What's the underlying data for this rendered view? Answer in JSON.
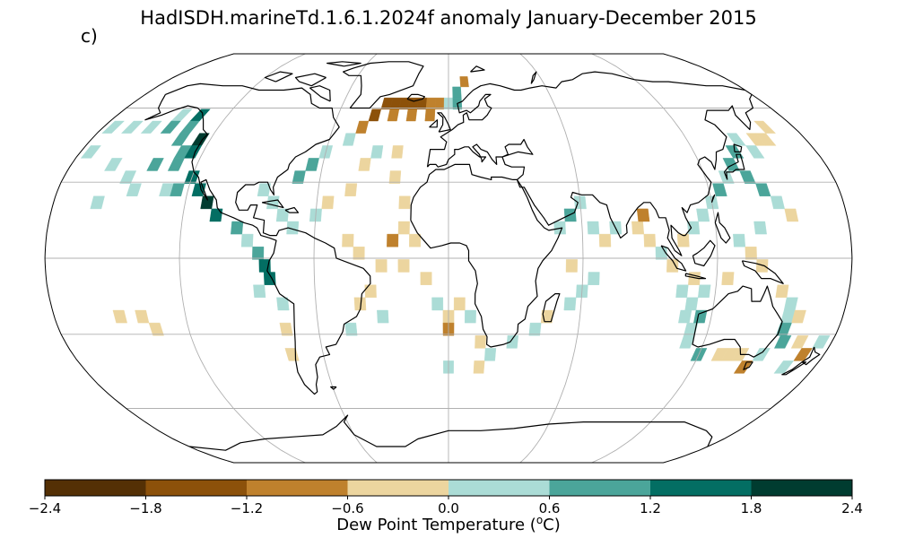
{
  "title": "HadISDH.marineTd.1.6.1.2024f anomaly January-December 2015",
  "panel_label": "c)",
  "projection": "Robinson",
  "colorbar": {
    "label_prefix": "Dew Point Temperature (",
    "label_unit_base": "o",
    "label_suffix": "C)",
    "ticks": [
      "−2.4",
      "−1.8",
      "−1.2",
      "−0.6",
      "0.0",
      "0.6",
      "1.2",
      "1.8",
      "2.4"
    ],
    "boundaries": [
      -2.4,
      -1.8,
      -1.2,
      -0.6,
      0.0,
      0.6,
      1.2,
      1.8,
      2.4
    ],
    "colors": [
      "#543005",
      "#8c510a",
      "#bf812d",
      "#ecd59f",
      "#abdcd6",
      "#4ba59a",
      "#036e63",
      "#003c30"
    ]
  },
  "cells": [
    {
      "lon": -175,
      "lat": 52,
      "v": 0.3
    },
    {
      "lon": -165,
      "lat": 52,
      "v": 0.3
    },
    {
      "lon": -155,
      "lat": 52,
      "v": 0.4
    },
    {
      "lon": -145,
      "lat": 57,
      "v": 0.5
    },
    {
      "lon": -145,
      "lat": 52,
      "v": 0.9
    },
    {
      "lon": -135,
      "lat": 57,
      "v": 1.5
    },
    {
      "lon": -135,
      "lat": 52,
      "v": 0.9
    },
    {
      "lon": -135,
      "lat": 47,
      "v": 1.0
    },
    {
      "lon": -125,
      "lat": 47,
      "v": 1.9
    },
    {
      "lon": -130,
      "lat": 42,
      "v": 1.0
    },
    {
      "lon": -125,
      "lat": 42,
      "v": 1.5
    },
    {
      "lon": -140,
      "lat": 37,
      "v": 0.9
    },
    {
      "lon": -130,
      "lat": 37,
      "v": 1.0
    },
    {
      "lon": -120,
      "lat": 32,
      "v": 1.5
    },
    {
      "lon": -130,
      "lat": 27,
      "v": 0.5
    },
    {
      "lon": -125,
      "lat": 27,
      "v": 1.0
    },
    {
      "lon": -115,
      "lat": 27,
      "v": 1.4
    },
    {
      "lon": -110,
      "lat": 22,
      "v": 2.0
    },
    {
      "lon": -105,
      "lat": 17,
      "v": 1.3
    },
    {
      "lon": -95,
      "lat": 12,
      "v": 0.8
    },
    {
      "lon": -90,
      "lat": 7,
      "v": 0.4
    },
    {
      "lon": -85,
      "lat": 2,
      "v": 0.9
    },
    {
      "lon": -82,
      "lat": -3,
      "v": 1.5
    },
    {
      "lon": -80,
      "lat": -8,
      "v": 1.5
    },
    {
      "lon": -85,
      "lat": -13,
      "v": 0.3
    },
    {
      "lon": -75,
      "lat": -18,
      "v": 0.4
    },
    {
      "lon": -75,
      "lat": -28,
      "v": -0.4
    },
    {
      "lon": -75,
      "lat": -38,
      "v": -0.3
    },
    {
      "lon": -150,
      "lat": -23,
      "v": -0.3
    },
    {
      "lon": -140,
      "lat": -23,
      "v": -0.4
    },
    {
      "lon": -135,
      "lat": -28,
      "v": -0.3
    },
    {
      "lon": -85,
      "lat": 27,
      "v": 0.4
    },
    {
      "lon": -80,
      "lat": 22,
      "v": 0.5
    },
    {
      "lon": -75,
      "lat": 17,
      "v": 0.4
    },
    {
      "lon": -70,
      "lat": 12,
      "v": 0.3
    },
    {
      "lon": -60,
      "lat": 17,
      "v": 0.4
    },
    {
      "lon": -70,
      "lat": 32,
      "v": 0.9
    },
    {
      "lon": -65,
      "lat": 37,
      "v": 0.9
    },
    {
      "lon": -60,
      "lat": 42,
      "v": 0.5
    },
    {
      "lon": -50,
      "lat": 47,
      "v": 0.4
    },
    {
      "lon": -45,
      "lat": 52,
      "v": -0.8
    },
    {
      "lon": -40,
      "lat": 57,
      "v": -1.4
    },
    {
      "lon": -35,
      "lat": 62,
      "v": -1.7
    },
    {
      "lon": -30,
      "lat": 62,
      "v": -1.5
    },
    {
      "lon": -25,
      "lat": 62,
      "v": -1.3
    },
    {
      "lon": -20,
      "lat": 62,
      "v": -1.6
    },
    {
      "lon": -15,
      "lat": 62,
      "v": -1.4
    },
    {
      "lon": -10,
      "lat": 62,
      "v": -1.2
    },
    {
      "lon": -5,
      "lat": 62,
      "v": -1.0
    },
    {
      "lon": -30,
      "lat": 57,
      "v": -0.8
    },
    {
      "lon": -20,
      "lat": 57,
      "v": -0.7
    },
    {
      "lon": -10,
      "lat": 57,
      "v": -0.9
    },
    {
      "lon": 0,
      "lat": 62,
      "v": 0.4
    },
    {
      "lon": 5,
      "lat": 62,
      "v": 0.8
    },
    {
      "lon": 5,
      "lat": 67,
      "v": 0.9
    },
    {
      "lon": 10,
      "lat": 72,
      "v": -0.8
    },
    {
      "lon": -55,
      "lat": 22,
      "v": -0.3
    },
    {
      "lon": -45,
      "lat": 27,
      "v": -0.4
    },
    {
      "lon": -40,
      "lat": 37,
      "v": -0.3
    },
    {
      "lon": -35,
      "lat": 42,
      "v": 0.4
    },
    {
      "lon": -25,
      "lat": 42,
      "v": -0.4
    },
    {
      "lon": -25,
      "lat": 32,
      "v": -0.4
    },
    {
      "lon": -20,
      "lat": 22,
      "v": -0.3
    },
    {
      "lon": -45,
      "lat": 7,
      "v": -0.4
    },
    {
      "lon": -40,
      "lat": 2,
      "v": -0.3
    },
    {
      "lon": -30,
      "lat": -3,
      "v": -0.4
    },
    {
      "lon": -25,
      "lat": 7,
      "v": -0.8
    },
    {
      "lon": -20,
      "lat": 12,
      "v": -0.3
    },
    {
      "lon": -15,
      "lat": 7,
      "v": -0.4
    },
    {
      "lon": -35,
      "lat": -13,
      "v": -0.4
    },
    {
      "lon": -30,
      "lat": -23,
      "v": 0.3
    },
    {
      "lon": -40,
      "lat": -18,
      "v": -0.3
    },
    {
      "lon": -45,
      "lat": -28,
      "v": 0.3
    },
    {
      "lon": -20,
      "lat": -3,
      "v": -0.4
    },
    {
      "lon": -10,
      "lat": -8,
      "v": -0.3
    },
    {
      "lon": -5,
      "lat": -18,
      "v": 0.4
    },
    {
      "lon": 0,
      "lat": -23,
      "v": -0.3
    },
    {
      "lon": 0,
      "lat": -28,
      "v": -0.9
    },
    {
      "lon": 5,
      "lat": -18,
      "v": -0.5
    },
    {
      "lon": 10,
      "lat": -23,
      "v": 0.5
    },
    {
      "lon": 15,
      "lat": -33,
      "v": -0.4
    },
    {
      "lon": 20,
      "lat": -38,
      "v": 0.4
    },
    {
      "lon": 15,
      "lat": -43,
      "v": -0.3
    },
    {
      "lon": 0,
      "lat": -43,
      "v": 0.3
    },
    {
      "lon": 30,
      "lat": -33,
      "v": 0.4
    },
    {
      "lon": 40,
      "lat": -28,
      "v": 0.5
    },
    {
      "lon": 45,
      "lat": -23,
      "v": -0.4
    },
    {
      "lon": 55,
      "lat": -18,
      "v": 0.5
    },
    {
      "lon": 60,
      "lat": -13,
      "v": 0.4
    },
    {
      "lon": 65,
      "lat": -8,
      "v": 0.3
    },
    {
      "lon": 55,
      "lat": -3,
      "v": -0.4
    },
    {
      "lon": 50,
      "lat": 12,
      "v": 0.5
    },
    {
      "lon": 55,
      "lat": 17,
      "v": 0.6
    },
    {
      "lon": 60,
      "lat": 22,
      "v": 0.4
    },
    {
      "lon": 65,
      "lat": 12,
      "v": 0.3
    },
    {
      "lon": 70,
      "lat": 7,
      "v": -0.4
    },
    {
      "lon": 75,
      "lat": 12,
      "v": 0.4
    },
    {
      "lon": 85,
      "lat": 12,
      "v": -0.4
    },
    {
      "lon": 88,
      "lat": 17,
      "v": -0.9
    },
    {
      "lon": 90,
      "lat": 7,
      "v": -0.4
    },
    {
      "lon": 95,
      "lat": 2,
      "v": 0.5
    },
    {
      "lon": 100,
      "lat": -3,
      "v": -0.3
    },
    {
      "lon": 105,
      "lat": 7,
      "v": -0.4
    },
    {
      "lon": 110,
      "lat": 12,
      "v": 0.4
    },
    {
      "lon": 115,
      "lat": 17,
      "v": 0.5
    },
    {
      "lon": 120,
      "lat": 22,
      "v": 0.4
    },
    {
      "lon": 125,
      "lat": 27,
      "v": 0.6
    },
    {
      "lon": 130,
      "lat": 32,
      "v": 0.4
    },
    {
      "lon": 135,
      "lat": 37,
      "v": 1.0
    },
    {
      "lon": 140,
      "lat": 42,
      "v": 0.9
    },
    {
      "lon": 145,
      "lat": 47,
      "v": 0.5
    },
    {
      "lon": 150,
      "lat": 42,
      "v": 0.4
    },
    {
      "lon": 155,
      "lat": 47,
      "v": -0.3
    },
    {
      "lon": 160,
      "lat": 47,
      "v": -0.4
    },
    {
      "lon": 165,
      "lat": 52,
      "v": -0.3
    },
    {
      "lon": 140,
      "lat": 32,
      "v": 0.6
    },
    {
      "lon": 145,
      "lat": 27,
      "v": 0.9
    },
    {
      "lon": 150,
      "lat": 22,
      "v": 0.5
    },
    {
      "lon": 155,
      "lat": 17,
      "v": -0.4
    },
    {
      "lon": 140,
      "lat": 12,
      "v": 0.4
    },
    {
      "lon": 130,
      "lat": 7,
      "v": 0.4
    },
    {
      "lon": 135,
      "lat": 2,
      "v": -0.3
    },
    {
      "lon": 140,
      "lat": -3,
      "v": -0.4
    },
    {
      "lon": 125,
      "lat": -8,
      "v": -0.4
    },
    {
      "lon": 115,
      "lat": -13,
      "v": 0.4
    },
    {
      "lon": 110,
      "lat": -8,
      "v": -0.4
    },
    {
      "lon": 105,
      "lat": -13,
      "v": 0.4
    },
    {
      "lon": 110,
      "lat": -18,
      "v": 0.5
    },
    {
      "lon": 108,
      "lat": -23,
      "v": 0.4
    },
    {
      "lon": 112,
      "lat": -28,
      "v": 0.4
    },
    {
      "lon": 112,
      "lat": -33,
      "v": 0.5
    },
    {
      "lon": 115,
      "lat": -23,
      "v": 0.9
    },
    {
      "lon": 150,
      "lat": -13,
      "v": -0.4
    },
    {
      "lon": 155,
      "lat": -18,
      "v": 0.4
    },
    {
      "lon": 155,
      "lat": -23,
      "v": 0.5
    },
    {
      "lon": 155,
      "lat": -28,
      "v": 0.9
    },
    {
      "lon": 157,
      "lat": -33,
      "v": 1.0
    },
    {
      "lon": 150,
      "lat": -38,
      "v": 0.4
    },
    {
      "lon": 140,
      "lat": -38,
      "v": -0.4
    },
    {
      "lon": 135,
      "lat": -38,
      "v": -0.3
    },
    {
      "lon": 130,
      "lat": -38,
      "v": -0.4
    },
    {
      "lon": 120,
      "lat": -38,
      "v": 1.0
    },
    {
      "lon": 145,
      "lat": -43,
      "v": -0.9
    },
    {
      "lon": 165,
      "lat": -33,
      "v": -0.4
    },
    {
      "lon": 170,
      "lat": -38,
      "v": -0.8
    },
    {
      "lon": 165,
      "lat": -43,
      "v": 0.4
    },
    {
      "lon": 160,
      "lat": -23,
      "v": -0.3
    },
    {
      "lon": 175,
      "lat": -33,
      "v": 0.4
    },
    {
      "lon": -175,
      "lat": 42,
      "v": 0.4
    },
    {
      "lon": -160,
      "lat": 37,
      "v": 0.4
    },
    {
      "lon": -150,
      "lat": 32,
      "v": 0.5
    },
    {
      "lon": -145,
      "lat": 27,
      "v": 0.4
    },
    {
      "lon": -160,
      "lat": 22,
      "v": 0.3
    }
  ]
}
